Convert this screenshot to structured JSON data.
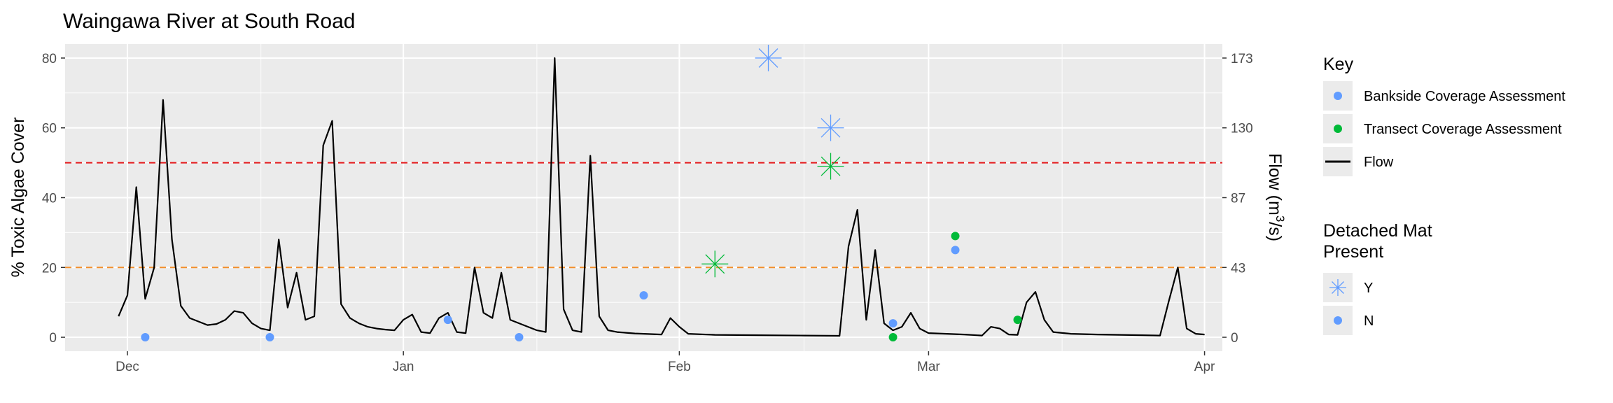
{
  "chart_data": {
    "type": "line",
    "title": "Waingawa River at South Road",
    "ylabel": "% Toxic Algae Cover",
    "y2label_prefix": "Flow (m",
    "y2label_sup": "3",
    "y2label_suffix": "/s)",
    "x_range": [
      "2021-11-24",
      "2022-04-03"
    ],
    "x_ticks": [
      {
        "date": "2021-12-01",
        "label": "Dec"
      },
      {
        "date": "2022-01-01",
        "label": "Jan"
      },
      {
        "date": "2022-02-01",
        "label": "Feb"
      },
      {
        "date": "2022-03-01",
        "label": "Mar"
      },
      {
        "date": "2022-04-01",
        "label": "Apr"
      }
    ],
    "ylim": [
      -4,
      84
    ],
    "y_ticks": [
      0,
      20,
      40,
      60,
      80
    ],
    "y2_ticks": [
      {
        "at": 0,
        "label": "0"
      },
      {
        "at": 20,
        "label": "43"
      },
      {
        "at": 40,
        "label": "87"
      },
      {
        "at": 60,
        "label": "130"
      },
      {
        "at": 80,
        "label": "173"
      }
    ],
    "grid": true,
    "reference_lines": [
      {
        "y": 50,
        "color": "#e41a1c",
        "style": "dashed"
      },
      {
        "y": 20,
        "color": "#f28e2b",
        "style": "dashed"
      }
    ],
    "colors": {
      "panel": "#ebebeb",
      "grid": "#ffffff",
      "bankside": "#619cff",
      "transect": "#00ba38",
      "flow": "#000000"
    },
    "flow_series": {
      "name": "Flow",
      "points": [
        [
          "2021-11-30",
          6
        ],
        [
          "2021-12-01",
          12
        ],
        [
          "2021-12-02",
          43
        ],
        [
          "2021-12-03",
          11
        ],
        [
          "2021-12-04",
          20
        ],
        [
          "2021-12-05",
          68
        ],
        [
          "2021-12-06",
          28
        ],
        [
          "2021-12-07",
          9
        ],
        [
          "2021-12-08",
          5.5
        ],
        [
          "2021-12-09",
          4.5
        ],
        [
          "2021-12-10",
          3.5
        ],
        [
          "2021-12-11",
          3.8
        ],
        [
          "2021-12-12",
          5
        ],
        [
          "2021-12-13",
          7.5
        ],
        [
          "2021-12-14",
          7
        ],
        [
          "2021-12-15",
          4
        ],
        [
          "2021-12-16",
          2.5
        ],
        [
          "2021-12-17",
          2
        ],
        [
          "2021-12-18",
          28
        ],
        [
          "2021-12-19",
          8.5
        ],
        [
          "2021-12-20",
          18.5
        ],
        [
          "2021-12-21",
          5
        ],
        [
          "2021-12-22",
          6
        ],
        [
          "2021-12-23",
          55
        ],
        [
          "2021-12-24",
          62
        ],
        [
          "2021-12-25",
          9.5
        ],
        [
          "2021-12-26",
          5.5
        ],
        [
          "2021-12-27",
          4
        ],
        [
          "2021-12-28",
          3
        ],
        [
          "2021-12-29",
          2.5
        ],
        [
          "2021-12-30",
          2.2
        ],
        [
          "2021-12-31",
          2
        ],
        [
          "2022-01-01",
          5
        ],
        [
          "2022-01-02",
          6.5
        ],
        [
          "2022-01-03",
          1.5
        ],
        [
          "2022-01-04",
          1.2
        ],
        [
          "2022-01-05",
          5.5
        ],
        [
          "2022-01-06",
          7
        ],
        [
          "2022-01-07",
          1.5
        ],
        [
          "2022-01-08",
          1.2
        ],
        [
          "2022-01-09",
          20
        ],
        [
          "2022-01-10",
          7
        ],
        [
          "2022-01-11",
          5.5
        ],
        [
          "2022-01-12",
          18.5
        ],
        [
          "2022-01-13",
          5
        ],
        [
          "2022-01-14",
          4
        ],
        [
          "2022-01-15",
          3
        ],
        [
          "2022-01-16",
          2
        ],
        [
          "2022-01-17",
          1.5
        ],
        [
          "2022-01-18",
          80
        ],
        [
          "2022-01-19",
          8
        ],
        [
          "2022-01-20",
          2
        ],
        [
          "2022-01-21",
          1.5
        ],
        [
          "2022-01-22",
          52
        ],
        [
          "2022-01-23",
          6
        ],
        [
          "2022-01-24",
          2
        ],
        [
          "2022-01-25",
          1.5
        ],
        [
          "2022-01-26",
          1.3
        ],
        [
          "2022-01-27",
          1.1
        ],
        [
          "2022-01-28",
          1
        ],
        [
          "2022-01-29",
          0.9
        ],
        [
          "2022-01-30",
          0.8
        ],
        [
          "2022-01-31",
          5.5
        ],
        [
          "2022-02-01",
          3
        ],
        [
          "2022-02-02",
          1
        ],
        [
          "2022-02-05",
          0.7
        ],
        [
          "2022-02-10",
          0.6
        ],
        [
          "2022-02-15",
          0.5
        ],
        [
          "2022-02-19",
          0.4
        ],
        [
          "2022-02-20",
          26
        ],
        [
          "2022-02-21",
          36.5
        ],
        [
          "2022-02-22",
          5
        ],
        [
          "2022-02-23",
          25
        ],
        [
          "2022-02-24",
          4
        ],
        [
          "2022-02-25",
          2
        ],
        [
          "2022-02-26",
          3
        ],
        [
          "2022-02-27",
          7
        ],
        [
          "2022-02-28",
          2.5
        ],
        [
          "2022-03-01",
          1.2
        ],
        [
          "2022-03-05",
          0.8
        ],
        [
          "2022-03-07",
          0.5
        ],
        [
          "2022-03-08",
          3
        ],
        [
          "2022-03-09",
          2.5
        ],
        [
          "2022-03-10",
          0.8
        ],
        [
          "2022-03-11",
          0.7
        ],
        [
          "2022-03-12",
          10
        ],
        [
          "2022-03-13",
          13
        ],
        [
          "2022-03-14",
          5
        ],
        [
          "2022-03-15",
          1.5
        ],
        [
          "2022-03-17",
          1
        ],
        [
          "2022-03-20",
          0.8
        ],
        [
          "2022-03-25",
          0.6
        ],
        [
          "2022-03-27",
          0.5
        ],
        [
          "2022-03-28",
          10.5
        ],
        [
          "2022-03-29",
          20
        ],
        [
          "2022-03-30",
          2.5
        ],
        [
          "2022-03-31",
          1
        ],
        [
          "2022-04-01",
          0.8
        ]
      ]
    },
    "point_series": [
      {
        "name": "Bankside Coverage Assessment",
        "color": "#619cff",
        "points": [
          {
            "date": "2021-12-03",
            "y": 0,
            "mat": "N"
          },
          {
            "date": "2021-12-17",
            "y": 0,
            "mat": "N"
          },
          {
            "date": "2022-01-06",
            "y": 5,
            "mat": "N"
          },
          {
            "date": "2022-01-14",
            "y": 0,
            "mat": "N"
          },
          {
            "date": "2022-01-28",
            "y": 12,
            "mat": "N"
          },
          {
            "date": "2022-02-11",
            "y": 80,
            "mat": "Y"
          },
          {
            "date": "2022-02-18",
            "y": 60,
            "mat": "Y"
          },
          {
            "date": "2022-02-25",
            "y": 4,
            "mat": "N"
          },
          {
            "date": "2022-03-04",
            "y": 25,
            "mat": "N"
          }
        ]
      },
      {
        "name": "Transect Coverage Assessment",
        "color": "#00ba38",
        "points": [
          {
            "date": "2022-02-05",
            "y": 21,
            "mat": "Y"
          },
          {
            "date": "2022-02-18",
            "y": 49,
            "mat": "Y"
          },
          {
            "date": "2022-02-25",
            "y": 0,
            "mat": "N"
          },
          {
            "date": "2022-03-04",
            "y": 29,
            "mat": "N"
          },
          {
            "date": "2022-03-11",
            "y": 5,
            "mat": "N"
          }
        ]
      }
    ],
    "legend": {
      "position": "right",
      "key_title": "Key",
      "key_items": [
        {
          "label": "Bankside Coverage Assessment",
          "symbol": "point",
          "color": "#619cff"
        },
        {
          "label": "Transect Coverage Assessment",
          "symbol": "point",
          "color": "#00ba38"
        },
        {
          "label": "Flow",
          "symbol": "line",
          "color": "#000000"
        }
      ],
      "mat_title_line1": "Detached Mat",
      "mat_title_line2": "Present",
      "mat_items": [
        {
          "label": "Y",
          "symbol": "asterisk",
          "color": "#619cff"
        },
        {
          "label": "N",
          "symbol": "point",
          "color": "#619cff"
        }
      ]
    }
  }
}
